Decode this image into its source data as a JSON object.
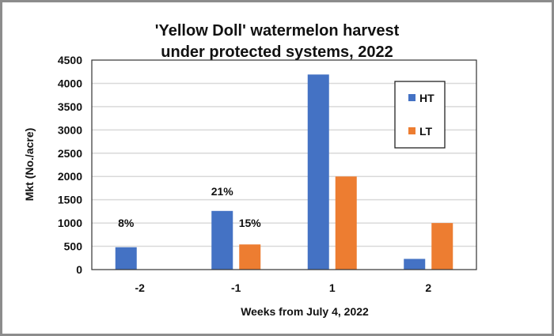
{
  "chart_data": {
    "type": "bar",
    "title_lines": [
      "'Yellow Doll' watermelon harvest",
      "under protected systems, 2022"
    ],
    "xlabel": "Weeks from July 4, 2022",
    "ylabel": "Mkt (No./acre)",
    "ylim": [
      0,
      4500
    ],
    "yticks": [
      0,
      500,
      1000,
      1500,
      2000,
      2500,
      3000,
      3500,
      4000,
      4500
    ],
    "categories": [
      "-2",
      "-1",
      "1",
      "2"
    ],
    "series": [
      {
        "name": "HT",
        "color": "#4472c4",
        "values": [
          480,
          1260,
          4190,
          230
        ]
      },
      {
        "name": "LT",
        "color": "#ed7d31",
        "values": [
          0,
          540,
          2000,
          1000
        ]
      }
    ],
    "grid": true,
    "legend_position": "top-right",
    "annotations": [
      {
        "text": "8%",
        "category": "-2",
        "series": "HT",
        "y": 1000
      },
      {
        "text": "21%",
        "category": "-1",
        "series": "HT",
        "y": 1680
      },
      {
        "text": "15%",
        "category": "-1",
        "series": "LT",
        "y": 1000
      }
    ]
  }
}
